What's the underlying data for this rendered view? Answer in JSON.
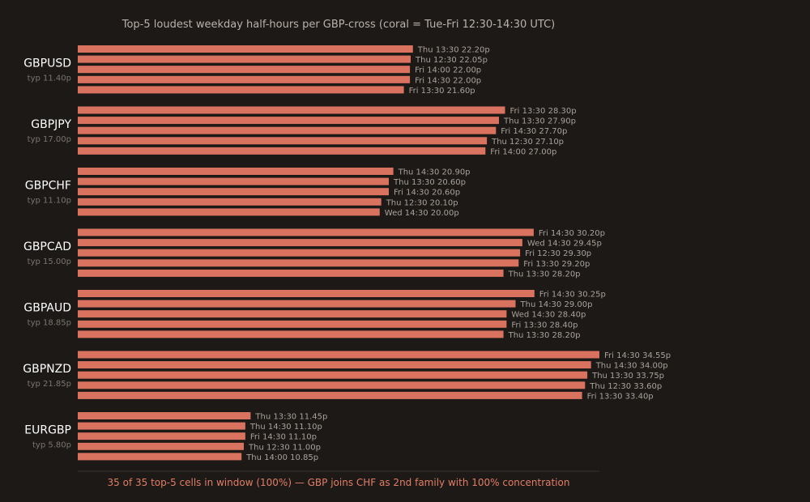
{
  "colors": {
    "background": "#1d1917",
    "bar_in_window": "#d9725f",
    "axis_line": "#3a3431",
    "footer": "#e27e66"
  },
  "chart_data": {
    "type": "bar",
    "orientation": "horizontal",
    "title": "Top-5 loudest weekday half-hours per GBP-cross (coral = Tue-Fri 12:30-14:30 UTC)",
    "footer": "35 of 35 top-5 cells in window (100%) — GBP joins CHF as 2nd family with 100% concentration",
    "xlim": [
      0,
      34.55
    ],
    "grid": false,
    "unit": "p",
    "groups": [
      {
        "name": "GBPUSD",
        "typ_label": "typ 11.40p",
        "bars": [
          {
            "slot": "Thu 13:30",
            "value": 22.2,
            "label": "Thu 13:30 22.20p",
            "in_window": true
          },
          {
            "slot": "Thu 12:30",
            "value": 22.05,
            "label": "Thu 12:30 22.05p",
            "in_window": true
          },
          {
            "slot": "Fri 14:00",
            "value": 22.0,
            "label": "Fri 14:00 22.00p",
            "in_window": true
          },
          {
            "slot": "Fri 14:30",
            "value": 22.0,
            "label": "Fri 14:30 22.00p",
            "in_window": true
          },
          {
            "slot": "Fri 13:30",
            "value": 21.6,
            "label": "Fri 13:30 21.60p",
            "in_window": true
          }
        ]
      },
      {
        "name": "GBPJPY",
        "typ_label": "typ 17.00p",
        "bars": [
          {
            "slot": "Fri 13:30",
            "value": 28.3,
            "label": "Fri 13:30 28.30p",
            "in_window": true
          },
          {
            "slot": "Thu 13:30",
            "value": 27.9,
            "label": "Thu 13:30 27.90p",
            "in_window": true
          },
          {
            "slot": "Fri 14:30",
            "value": 27.7,
            "label": "Fri 14:30 27.70p",
            "in_window": true
          },
          {
            "slot": "Thu 12:30",
            "value": 27.1,
            "label": "Thu 12:30 27.10p",
            "in_window": true
          },
          {
            "slot": "Fri 14:00",
            "value": 27.0,
            "label": "Fri 14:00 27.00p",
            "in_window": true
          }
        ]
      },
      {
        "name": "GBPCHF",
        "typ_label": "typ 11.10p",
        "bars": [
          {
            "slot": "Thu 14:30",
            "value": 20.9,
            "label": "Thu 14:30 20.90p",
            "in_window": true
          },
          {
            "slot": "Thu 13:30",
            "value": 20.6,
            "label": "Thu 13:30 20.60p",
            "in_window": true
          },
          {
            "slot": "Fri 14:30",
            "value": 20.6,
            "label": "Fri 14:30 20.60p",
            "in_window": true
          },
          {
            "slot": "Thu 12:30",
            "value": 20.1,
            "label": "Thu 12:30 20.10p",
            "in_window": true
          },
          {
            "slot": "Wed 14:30",
            "value": 20.0,
            "label": "Wed 14:30 20.00p",
            "in_window": true
          }
        ]
      },
      {
        "name": "GBPCAD",
        "typ_label": "typ 15.00p",
        "bars": [
          {
            "slot": "Fri 14:30",
            "value": 30.2,
            "label": "Fri 14:30 30.20p",
            "in_window": true
          },
          {
            "slot": "Wed 14:30",
            "value": 29.45,
            "label": "Wed 14:30 29.45p",
            "in_window": true
          },
          {
            "slot": "Fri 12:30",
            "value": 29.3,
            "label": "Fri 12:30 29.30p",
            "in_window": true
          },
          {
            "slot": "Fri 13:30",
            "value": 29.2,
            "label": "Fri 13:30 29.20p",
            "in_window": true
          },
          {
            "slot": "Thu 13:30",
            "value": 28.2,
            "label": "Thu 13:30 28.20p",
            "in_window": true
          }
        ]
      },
      {
        "name": "GBPAUD",
        "typ_label": "typ 18.85p",
        "bars": [
          {
            "slot": "Fri 14:30",
            "value": 30.25,
            "label": "Fri 14:30 30.25p",
            "in_window": true
          },
          {
            "slot": "Thu 14:30",
            "value": 29.0,
            "label": "Thu 14:30 29.00p",
            "in_window": true
          },
          {
            "slot": "Wed 14:30",
            "value": 28.4,
            "label": "Wed 14:30 28.40p",
            "in_window": true
          },
          {
            "slot": "Fri 13:30",
            "value": 28.4,
            "label": "Fri 13:30 28.40p",
            "in_window": true
          },
          {
            "slot": "Thu 13:30",
            "value": 28.2,
            "label": "Thu 13:30 28.20p",
            "in_window": true
          }
        ]
      },
      {
        "name": "GBPNZD",
        "typ_label": "typ 21.85p",
        "bars": [
          {
            "slot": "Fri 14:30",
            "value": 34.55,
            "label": "Fri 14:30 34.55p",
            "in_window": true
          },
          {
            "slot": "Thu 14:30",
            "value": 34.0,
            "label": "Thu 14:30 34.00p",
            "in_window": true
          },
          {
            "slot": "Thu 13:30",
            "value": 33.75,
            "label": "Thu 13:30 33.75p",
            "in_window": true
          },
          {
            "slot": "Thu 12:30",
            "value": 33.6,
            "label": "Thu 12:30 33.60p",
            "in_window": true
          },
          {
            "slot": "Fri 13:30",
            "value": 33.4,
            "label": "Fri 13:30 33.40p",
            "in_window": true
          }
        ]
      },
      {
        "name": "EURGBP",
        "typ_label": "typ 5.80p",
        "bars": [
          {
            "slot": "Thu 13:30",
            "value": 11.45,
            "label": "Thu 13:30 11.45p",
            "in_window": true
          },
          {
            "slot": "Thu 14:30",
            "value": 11.1,
            "label": "Thu 14:30 11.10p",
            "in_window": true
          },
          {
            "slot": "Fri 14:30",
            "value": 11.1,
            "label": "Fri 14:30 11.10p",
            "in_window": true
          },
          {
            "slot": "Thu 12:30",
            "value": 11.0,
            "label": "Thu 12:30 11.00p",
            "in_window": true
          },
          {
            "slot": "Thu 14:00",
            "value": 10.85,
            "label": "Thu 14:00 10.85p",
            "in_window": true
          }
        ]
      }
    ]
  }
}
